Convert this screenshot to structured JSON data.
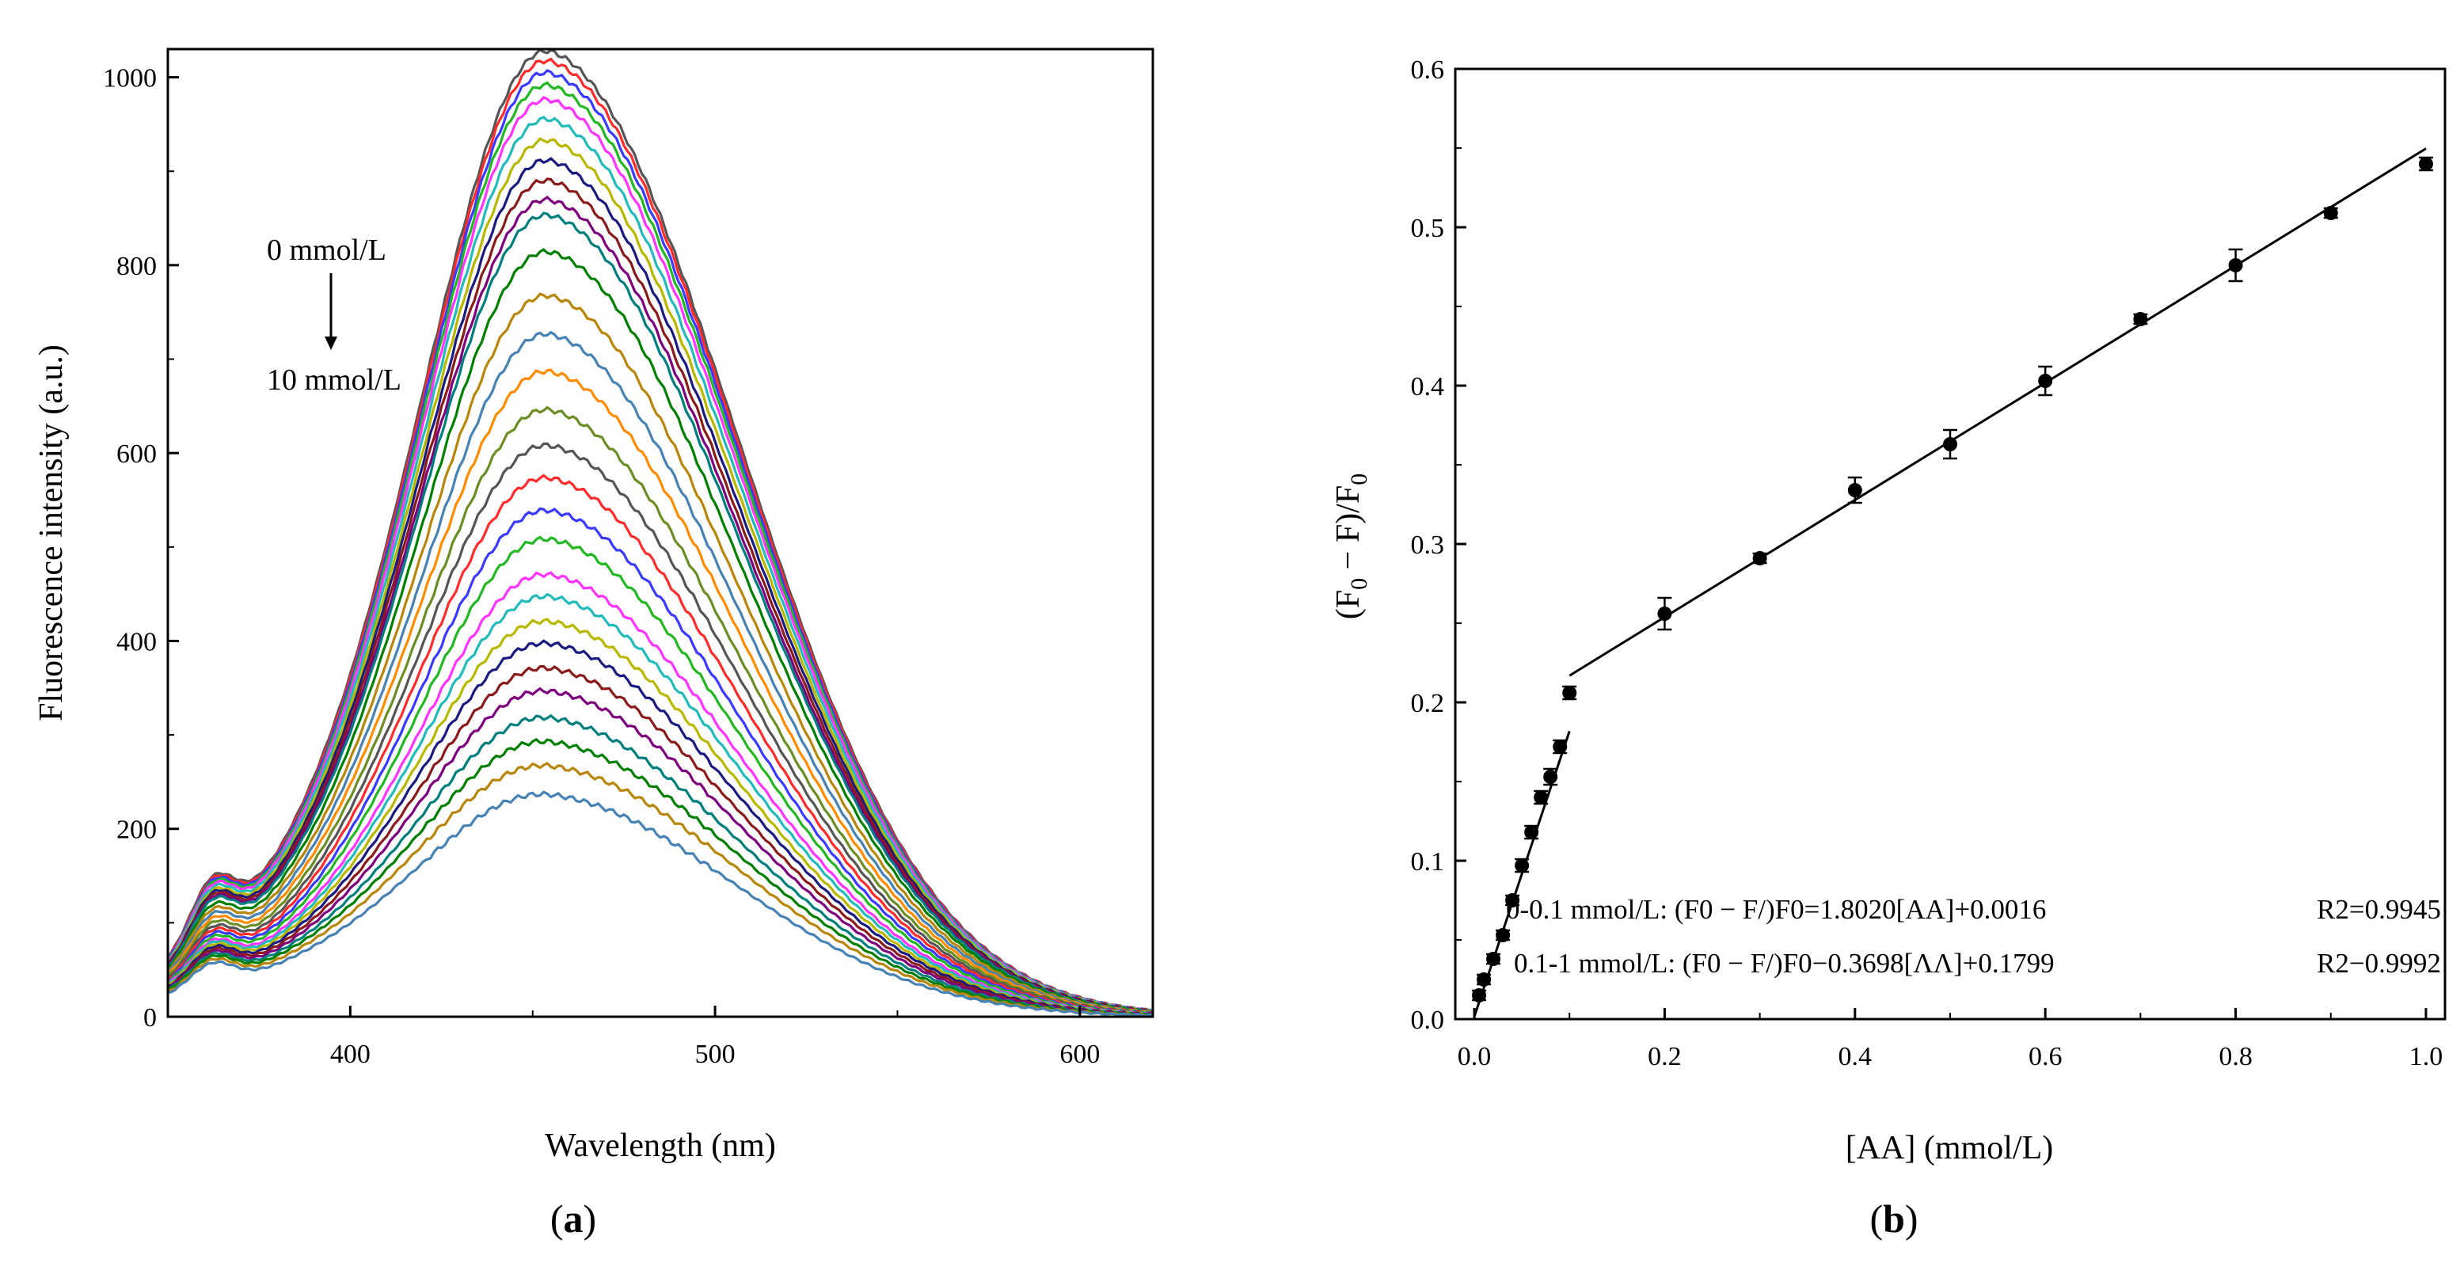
{
  "chart_data": [
    {
      "type": "line",
      "panel_label": "(a)",
      "xlabel": "Wavelength (nm)",
      "ylabel": "Fluorescence intensity (a.u.)",
      "xlim": [
        350,
        620
      ],
      "ylim": [
        0,
        1030
      ],
      "x_ticks": [
        400,
        500,
        600
      ],
      "y_ticks": [
        0,
        200,
        400,
        600,
        800,
        1000
      ],
      "annotation_top": "0 mmol/L",
      "annotation_bottom": "10 mmol/L",
      "peak_wavelength": 455,
      "series_colors": [
        "#555555",
        "#ff2a2a",
        "#3a3aff",
        "#22b822",
        "#ff33ff",
        "#22bbbb",
        "#b8b800",
        "#1a1a80",
        "#8b1a1a",
        "#7f007f",
        "#007f7f",
        "#008000",
        "#b8860b",
        "#4682b4",
        "#ff8c00",
        "#6b8e23"
      ],
      "series": [
        {
          "name": "0 mmol/L",
          "peak": 1000,
          "base360": 135
        },
        {
          "name": "s2",
          "peak": 990,
          "base360": 133
        },
        {
          "name": "s3",
          "peak": 978,
          "base360": 131
        },
        {
          "name": "s4",
          "peak": 965,
          "base360": 129
        },
        {
          "name": "s5",
          "peak": 950,
          "base360": 127
        },
        {
          "name": "s6",
          "peak": 930,
          "base360": 124
        },
        {
          "name": "s7",
          "peak": 908,
          "base360": 121
        },
        {
          "name": "s8",
          "peak": 887,
          "base360": 119
        },
        {
          "name": "s9",
          "peak": 866,
          "base360": 117
        },
        {
          "name": "s10",
          "peak": 846,
          "base360": 115
        },
        {
          "name": "s11",
          "peak": 830,
          "base360": 113
        },
        {
          "name": "s12",
          "peak": 792,
          "base360": 108
        },
        {
          "name": "s13",
          "peak": 746,
          "base360": 104
        },
        {
          "name": "s14",
          "peak": 706,
          "base360": 100
        },
        {
          "name": "s15",
          "peak": 667,
          "base360": 96
        },
        {
          "name": "s16",
          "peak": 627,
          "base360": 92
        },
        {
          "name": "s17",
          "peak": 590,
          "base360": 88
        },
        {
          "name": "s18",
          "peak": 556,
          "base360": 85
        },
        {
          "name": "s19",
          "peak": 522,
          "base360": 82
        },
        {
          "name": "s20",
          "peak": 492,
          "base360": 79
        },
        {
          "name": "s21",
          "peak": 455,
          "base360": 76
        },
        {
          "name": "s22",
          "peak": 432,
          "base360": 74
        },
        {
          "name": "s23",
          "peak": 406,
          "base360": 72
        },
        {
          "name": "s24",
          "peak": 383,
          "base360": 70
        },
        {
          "name": "s25",
          "peak": 357,
          "base360": 68
        },
        {
          "name": "s26",
          "peak": 333,
          "base360": 66
        },
        {
          "name": "s27",
          "peak": 305,
          "base360": 64
        },
        {
          "name": "s28",
          "peak": 280,
          "base360": 62
        },
        {
          "name": "s29",
          "peak": 255,
          "base360": 59
        },
        {
          "name": "10 mmol/L",
          "peak": 225,
          "base360": 56
        }
      ]
    },
    {
      "type": "scatter",
      "panel_label": "(b)",
      "xlabel": "[AA] (mmol/L)",
      "ylabel": "(F0 − F)/F0",
      "xlim": [
        -0.02,
        1.02
      ],
      "ylim": [
        0,
        0.6
      ],
      "x_ticks": [
        "0.0",
        "0.2",
        "0.4",
        "0.6",
        "0.8",
        "1.0"
      ],
      "y_ticks": [
        "0.0",
        "0.1",
        "0.2",
        "0.3",
        "0.4",
        "0.5",
        "0.6"
      ],
      "points": [
        {
          "x": 0.005,
          "y": 0.015,
          "err": 0.003
        },
        {
          "x": 0.01,
          "y": 0.025,
          "err": 0.003
        },
        {
          "x": 0.02,
          "y": 0.038,
          "err": 0.003
        },
        {
          "x": 0.03,
          "y": 0.053,
          "err": 0.003
        },
        {
          "x": 0.04,
          "y": 0.075,
          "err": 0.003
        },
        {
          "x": 0.05,
          "y": 0.097,
          "err": 0.004
        },
        {
          "x": 0.06,
          "y": 0.118,
          "err": 0.004
        },
        {
          "x": 0.07,
          "y": 0.14,
          "err": 0.004
        },
        {
          "x": 0.08,
          "y": 0.153,
          "err": 0.005
        },
        {
          "x": 0.09,
          "y": 0.172,
          "err": 0.004
        },
        {
          "x": 0.1,
          "y": 0.206,
          "err": 0.004
        },
        {
          "x": 0.2,
          "y": 0.256,
          "err": 0.01
        },
        {
          "x": 0.3,
          "y": 0.291,
          "err": 0.003
        },
        {
          "x": 0.4,
          "y": 0.334,
          "err": 0.008
        },
        {
          "x": 0.5,
          "y": 0.363,
          "err": 0.009
        },
        {
          "x": 0.6,
          "y": 0.403,
          "err": 0.009
        },
        {
          "x": 0.7,
          "y": 0.442,
          "err": 0.003
        },
        {
          "x": 0.8,
          "y": 0.476,
          "err": 0.01
        },
        {
          "x": 0.9,
          "y": 0.509,
          "err": 0.003
        },
        {
          "x": 1.0,
          "y": 0.54,
          "err": 0.004
        }
      ],
      "fit_lines": [
        {
          "range": "0-0.1 mmol/L",
          "slope": 1.802,
          "intercept": 0.0016,
          "x0": 0.0,
          "x1": 0.1,
          "equation": "0-0.1 mmol/L: (F0 − F/)F0=1.8020[AA]+0.0016",
          "r2": "R2=0.9945"
        },
        {
          "range": "0.1-1 mmol/L",
          "slope": 0.3698,
          "intercept": 0.1799,
          "x0": 0.1,
          "x1": 1.0,
          "equation": "0.1-1 mmol/L: (F0 − F/)F0−0.3698[ΛΛ]+0.1799",
          "r2": "R2−0.9992"
        }
      ]
    }
  ],
  "panel_a_label": "a",
  "panel_b_label": "b"
}
